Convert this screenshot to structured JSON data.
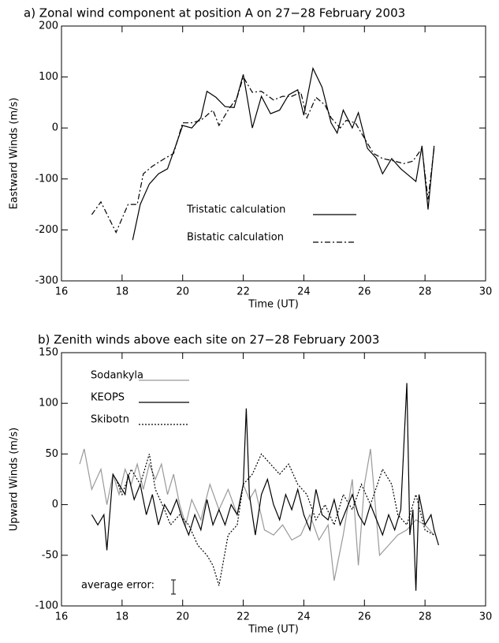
{
  "chart_data": [
    {
      "type": "line",
      "title": "a) Zonal wind component at position A on 27−28 February 2003",
      "xlabel": "Time (UT)",
      "ylabel": "Eastward Winds (m/s)",
      "xlim": [
        16,
        30
      ],
      "xticks": [
        16,
        18,
        20,
        22,
        24,
        26,
        28,
        30
      ],
      "ylim": [
        -300,
        200
      ],
      "yticks": [
        -300,
        -200,
        -100,
        0,
        100,
        200
      ],
      "series": [
        {
          "name": "Tristatic calculation",
          "color": "#000000",
          "style": "solid",
          "x": [
            18.35,
            18.6,
            18.9,
            19.2,
            19.5,
            19.8,
            20.0,
            20.3,
            20.6,
            20.8,
            21.1,
            21.4,
            21.7,
            22.0,
            22.3,
            22.6,
            22.9,
            23.2,
            23.5,
            23.8,
            24.0,
            24.3,
            24.6,
            24.9,
            25.1,
            25.3,
            25.6,
            25.8,
            26.1,
            26.4,
            26.6,
            26.9,
            27.2,
            27.5,
            27.7,
            27.9,
            28.1,
            28.3
          ],
          "values": [
            -220,
            -150,
            -110,
            -90,
            -80,
            -30,
            5,
            0,
            20,
            72,
            60,
            42,
            40,
            105,
            0,
            62,
            28,
            35,
            65,
            75,
            25,
            117,
            80,
            10,
            -10,
            35,
            0,
            30,
            -40,
            -60,
            -90,
            -60,
            -80,
            -95,
            -105,
            -35,
            -160,
            -35
          ]
        },
        {
          "name": "Bistatic calculation",
          "color": "#000000",
          "style": "dashdot",
          "x": [
            17.0,
            17.3,
            17.8,
            18.2,
            18.5,
            18.7,
            19.0,
            19.4,
            19.7,
            20.0,
            20.3,
            20.6,
            21.0,
            21.2,
            21.5,
            21.8,
            22.0,
            22.3,
            22.6,
            23.0,
            23.3,
            23.6,
            23.9,
            24.1,
            24.4,
            24.7,
            24.9,
            25.2,
            25.4,
            25.7,
            26.0,
            26.3,
            26.6,
            27.0,
            27.3,
            27.6,
            27.9,
            28.1,
            28.3
          ],
          "values": [
            -170,
            -145,
            -205,
            -150,
            -150,
            -90,
            -75,
            -60,
            -50,
            10,
            10,
            15,
            35,
            5,
            35,
            60,
            100,
            70,
            72,
            55,
            62,
            62,
            70,
            20,
            60,
            45,
            20,
            0,
            15,
            10,
            -20,
            -50,
            -60,
            -65,
            -70,
            -65,
            -40,
            -140,
            -40
          ]
        }
      ]
    },
    {
      "type": "line",
      "title": "b) Zenith winds above each site on 27−28 February 2003",
      "xlabel": "Time (UT)",
      "ylabel": "Upward Winds (m/s)",
      "xlim": [
        16,
        30
      ],
      "xticks": [
        16,
        18,
        20,
        22,
        24,
        26,
        28,
        30
      ],
      "ylim": [
        -100,
        150
      ],
      "yticks": [
        -100,
        -50,
        0,
        50,
        100,
        150
      ],
      "annotation": "average error:",
      "average_error": 7,
      "series": [
        {
          "name": "Sodankyla",
          "color": "#999999",
          "style": "solid",
          "x": [
            16.6,
            16.75,
            17.0,
            17.3,
            17.5,
            17.7,
            17.9,
            18.1,
            18.3,
            18.5,
            18.7,
            18.9,
            19.1,
            19.3,
            19.5,
            19.7,
            19.9,
            20.1,
            20.3,
            20.6,
            20.9,
            21.2,
            21.5,
            21.8,
            22.0,
            22.2,
            22.4,
            22.7,
            23.0,
            23.3,
            23.6,
            23.9,
            24.2,
            24.5,
            24.8,
            25.0,
            25.3,
            25.6,
            25.8,
            26.0,
            26.2,
            26.5,
            26.8,
            27.1,
            27.4,
            27.7,
            28.0,
            28.3
          ],
          "values": [
            40,
            55,
            15,
            35,
            0,
            30,
            10,
            35,
            20,
            40,
            15,
            40,
            25,
            40,
            10,
            30,
            0,
            -20,
            5,
            -15,
            20,
            -5,
            15,
            -10,
            20,
            5,
            15,
            -25,
            -30,
            -20,
            -35,
            -30,
            -10,
            -35,
            -20,
            -75,
            -30,
            25,
            -60,
            20,
            55,
            -50,
            -40,
            -30,
            -25,
            -15,
            -20,
            -30
          ]
        },
        {
          "name": "KEOPS",
          "color": "#000000",
          "style": "solid",
          "x": [
            17.0,
            17.2,
            17.4,
            17.5,
            17.7,
            17.9,
            18.1,
            18.2,
            18.4,
            18.6,
            18.8,
            19.0,
            19.2,
            19.4,
            19.6,
            19.8,
            20.0,
            20.2,
            20.4,
            20.6,
            20.8,
            21.0,
            21.2,
            21.4,
            21.6,
            21.8,
            22.0,
            22.1,
            22.2,
            22.4,
            22.6,
            22.8,
            23.0,
            23.2,
            23.4,
            23.6,
            23.8,
            24.0,
            24.2,
            24.4,
            24.6,
            24.8,
            25.0,
            25.2,
            25.4,
            25.6,
            25.8,
            26.0,
            26.2,
            26.4,
            26.6,
            26.8,
            27.0,
            27.2,
            27.4,
            27.5,
            27.6,
            27.7,
            27.8,
            28.0,
            28.2,
            28.3,
            28.45
          ],
          "values": [
            -10,
            -20,
            -10,
            -45,
            30,
            20,
            10,
            30,
            5,
            20,
            -10,
            10,
            -20,
            0,
            -10,
            5,
            -15,
            -30,
            -10,
            -25,
            5,
            -20,
            -5,
            -20,
            0,
            -10,
            20,
            95,
            10,
            -30,
            10,
            25,
            0,
            -15,
            10,
            -5,
            15,
            -10,
            -25,
            15,
            -10,
            -15,
            5,
            -20,
            -5,
            10,
            -10,
            -20,
            0,
            -15,
            -30,
            -10,
            -25,
            -5,
            120,
            -30,
            -5,
            -85,
            10,
            -20,
            -10,
            -25,
            -40
          ]
        },
        {
          "name": "Skibotn",
          "color": "#000000",
          "style": "dotted",
          "x": [
            17.8,
            18.0,
            18.3,
            18.6,
            18.9,
            19.1,
            19.4,
            19.6,
            19.9,
            20.2,
            20.5,
            20.8,
            21.0,
            21.2,
            21.5,
            21.8,
            22.0,
            22.3,
            22.6,
            22.9,
            23.2,
            23.5,
            23.8,
            24.1,
            24.4,
            24.7,
            25.0,
            25.3,
            25.6,
            25.9,
            26.2,
            26.6,
            26.9,
            27.1,
            27.4,
            27.7,
            28.0,
            28.3
          ],
          "values": [
            25,
            10,
            35,
            20,
            50,
            15,
            -5,
            -20,
            -10,
            -20,
            -40,
            -50,
            -60,
            -80,
            -30,
            -20,
            20,
            30,
            50,
            40,
            30,
            40,
            20,
            10,
            -15,
            0,
            -20,
            10,
            -5,
            20,
            0,
            35,
            20,
            -10,
            -20,
            10,
            -25,
            -30
          ]
        }
      ]
    }
  ]
}
